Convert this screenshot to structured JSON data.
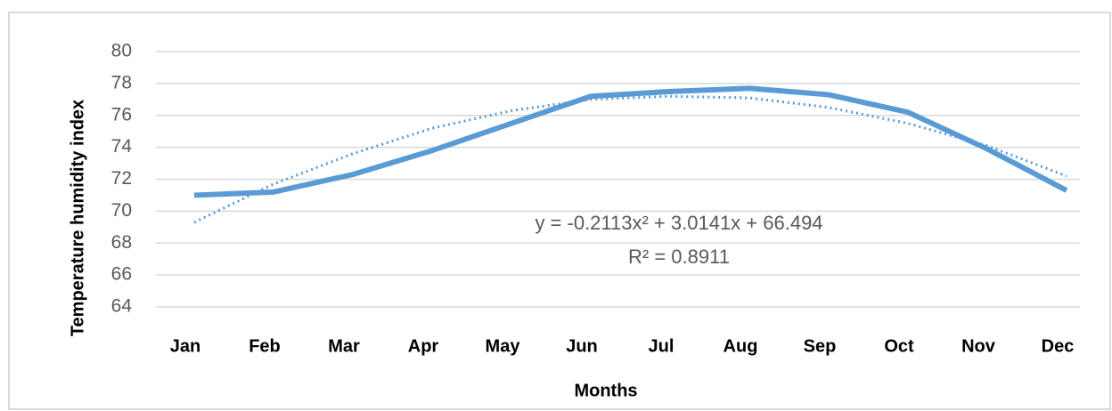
{
  "chart_data": {
    "type": "line",
    "x_label": "Months",
    "y_label": "Temperature humidity index",
    "categories": [
      "Jan",
      "Feb",
      "Mar",
      "Apr",
      "May",
      "Jun",
      "Jul",
      "Aug",
      "Sep",
      "Oct",
      "Nov",
      "Dec"
    ],
    "series": [
      {
        "color": "#5b9bd5",
        "style": "solid",
        "values": [
          71.0,
          71.2,
          72.3,
          73.8,
          75.5,
          77.2,
          77.5,
          77.7,
          77.3,
          76.2,
          73.9,
          71.3
        ]
      },
      {
        "color": "#5b9bd5",
        "style": "dotted",
        "values": [
          69.3,
          71.7,
          73.6,
          75.2,
          76.3,
          77.0,
          77.2,
          77.1,
          76.5,
          75.5,
          74.1,
          72.2
        ]
      }
    ],
    "annotations": [
      "y = -0.2113x² + 3.0141x + 66.494",
      "R² = 0.8911"
    ],
    "ylim": [
      64,
      80
    ],
    "yticks": [
      64,
      66,
      68,
      70,
      72,
      74,
      76,
      78,
      80
    ],
    "grid": true
  }
}
